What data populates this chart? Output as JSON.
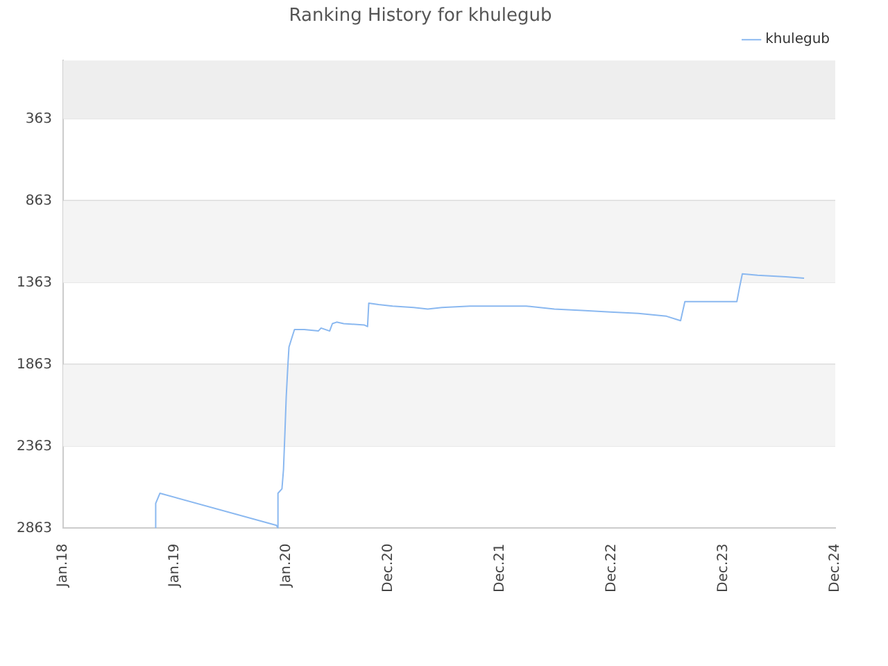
{
  "chart_data": {
    "type": "line",
    "title": "Ranking History for khulegub",
    "x": [
      "2018-10-31",
      "2018-10-31",
      "2018-11-14",
      "2019-11-30",
      "2019-12-05",
      "2019-12-05",
      "2019-12-18",
      "2019-12-23",
      "2019-12-28",
      "2020-01-01",
      "2020-01-06",
      "2020-01-10",
      "2020-01-19",
      "2020-01-28",
      "2020-02-29",
      "2020-04-15",
      "2020-04-24",
      "2020-05-22",
      "2020-05-31",
      "2020-06-14",
      "2020-07-07",
      "2020-09-13",
      "2020-09-23",
      "2020-09-27",
      "2020-10-29",
      "2020-12-14",
      "2021-02-21",
      "2021-04-08",
      "2021-05-24",
      "2021-08-24",
      "2022-02-24",
      "2022-05-27",
      "2022-08-26",
      "2022-11-26",
      "2023-02-26",
      "2023-05-29",
      "2023-07-14",
      "2023-07-28",
      "2024-01-14",
      "2024-01-23",
      "2024-02-01",
      "2024-03-22",
      "2024-06-22",
      "2024-08-21"
    ],
    "series": [
      {
        "name": "khulegub",
        "color": "#8ab8f0",
        "values": [
          2863,
          2711,
          2649,
          2845,
          2863,
          2649,
          2622,
          2506,
          2265,
          2060,
          1881,
          1756,
          1702,
          1649,
          1649,
          1658,
          1640,
          1658,
          1613,
          1604,
          1613,
          1622,
          1631,
          1488,
          1497,
          1506,
          1515,
          1524,
          1515,
          1506,
          1506,
          1524,
          1533,
          1542,
          1551,
          1568,
          1595,
          1479,
          1479,
          1390,
          1309,
          1318,
          1327,
          1336
        ]
      }
    ],
    "xlim": [
      "2018-01-01",
      "2024-12-01"
    ],
    "xticks": [
      {
        "value": "2018-01-01",
        "label": "Jan.18"
      },
      {
        "value": "2019-01-01",
        "label": "Jan.19"
      },
      {
        "value": "2020-01-01",
        "label": "Jan.20"
      },
      {
        "value": "2020-12-01",
        "label": "Dec.20"
      },
      {
        "value": "2021-12-01",
        "label": "Dec.21"
      },
      {
        "value": "2022-12-01",
        "label": "Dec.22"
      },
      {
        "value": "2023-12-01",
        "label": "Dec.23"
      },
      {
        "value": "2024-12-01",
        "label": "Dec.24"
      }
    ],
    "ylim": [
      2863,
      6
    ],
    "yticks": [
      363,
      863,
      1363,
      1863,
      2363,
      2863
    ],
    "bands": [
      {
        "axis": "y",
        "from": 6,
        "to": 363,
        "color": "#eeeeee"
      },
      {
        "axis": "y",
        "from": 863,
        "to": 1363,
        "color": "#f4f4f4"
      },
      {
        "axis": "y",
        "from": 1863,
        "to": 2363,
        "color": "#f4f4f4"
      }
    ],
    "grid": "y",
    "legend": "top right",
    "marker": "none",
    "line_style": "solid"
  }
}
